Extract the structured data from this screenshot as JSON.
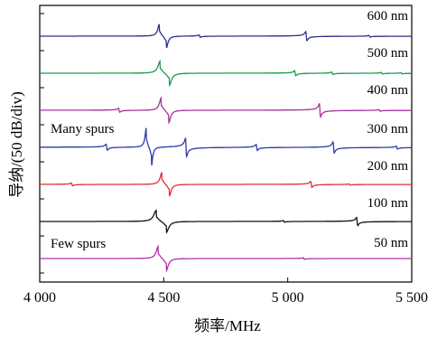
{
  "chart_data": {
    "type": "line",
    "title": "",
    "xlabel": "频率/MHz",
    "ylabel": "导纳/(50 dB/div)",
    "xlim": [
      4000,
      5500
    ],
    "x_ticks": [
      4000,
      4500,
      5000,
      5500
    ],
    "x_tick_labels": [
      "4 000",
      "4 500",
      "5 000",
      "5 500"
    ],
    "grid": false,
    "annotations": [
      {
        "text": "Many spurs",
        "near_series": "300 nm"
      },
      {
        "text": "Few spurs",
        "near_series": "50 nm"
      }
    ],
    "series": [
      {
        "name": "600 nm",
        "color": "#2e2f8c",
        "resonance_mhz": 4483,
        "antiresonance_mhz": 4510,
        "amplitude": 1.0,
        "spurs": [
          {
            "x": 4645,
            "a": 0.12
          },
          {
            "x": 5075,
            "a": 0.45
          },
          {
            "x": 5330,
            "a": 0.08
          }
        ]
      },
      {
        "name": "500 nm",
        "color": "#1a9a4a",
        "resonance_mhz": 4486,
        "antiresonance_mhz": 4522,
        "amplitude": 1.0,
        "spurs": [
          {
            "x": 5030,
            "a": 0.25
          },
          {
            "x": 5180,
            "a": 0.12
          },
          {
            "x": 5380,
            "a": 0.08
          },
          {
            "x": 5460,
            "a": 0.06
          }
        ]
      },
      {
        "name": "400 nm",
        "color": "#a5329e",
        "resonance_mhz": 4490,
        "antiresonance_mhz": 4520,
        "amplitude": 1.0,
        "spurs": [
          {
            "x": 4320,
            "a": 0.2
          },
          {
            "x": 5130,
            "a": 0.65
          },
          {
            "x": 5370,
            "a": 0.08
          }
        ]
      },
      {
        "name": "300 nm",
        "color": "#2e3aa8",
        "resonance_mhz": 4430,
        "antiresonance_mhz": 4450,
        "amplitude": 1.6,
        "spurs": [
          {
            "x": 4270,
            "a": 0.3
          },
          {
            "x": 4590,
            "a": 0.9
          },
          {
            "x": 4875,
            "a": 0.3
          },
          {
            "x": 5185,
            "a": 0.55
          },
          {
            "x": 5440,
            "a": 0.15
          }
        ]
      },
      {
        "name": "200 nm",
        "color": "#e03030",
        "resonance_mhz": 4493,
        "antiresonance_mhz": 4522,
        "amplitude": 1.0,
        "spurs": [
          {
            "x": 4130,
            "a": 0.15
          },
          {
            "x": 5095,
            "a": 0.3
          },
          {
            "x": 5250,
            "a": 0.06
          }
        ]
      },
      {
        "name": "100 nm",
        "color": "#111111",
        "resonance_mhz": 4470,
        "antiresonance_mhz": 4510,
        "amplitude": 0.9,
        "spurs": [
          {
            "x": 4985,
            "a": 0.08
          },
          {
            "x": 5280,
            "a": 0.4
          }
        ]
      },
      {
        "name": "50 nm",
        "color": "#b030b0",
        "resonance_mhz": 4478,
        "antiresonance_mhz": 4510,
        "amplitude": 1.0,
        "spurs": [
          {
            "x": 5065,
            "a": 0.08
          }
        ]
      }
    ]
  }
}
